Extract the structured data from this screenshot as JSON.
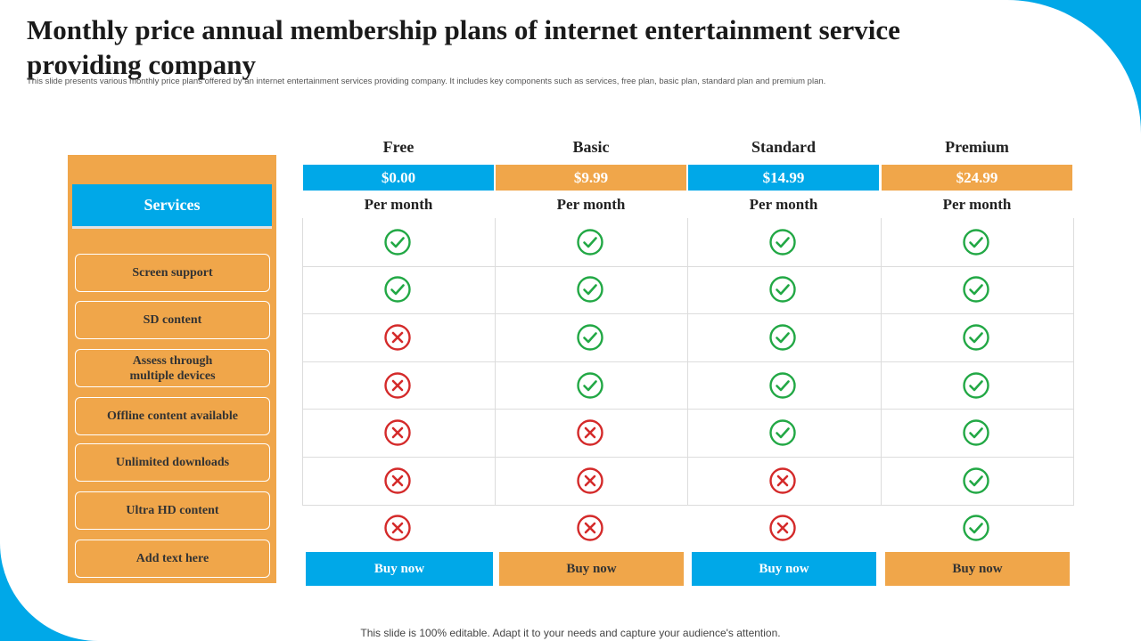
{
  "title": "Monthly price annual membership plans of internet entertainment service providing company",
  "subtitle": "This slide presents various monthly price plans offered by an internet entertainment services providing company. It includes key components such as services, free plan, basic plan, standard plan and premium plan.",
  "footer": "This slide is 100% editable. Adapt it to your needs and capture your audience's attention.",
  "colors": {
    "blue": "#00a8e8",
    "orange": "#f0a64a",
    "check": "#22a845",
    "cross": "#d42a2a"
  },
  "services": {
    "header": "Services",
    "items": [
      "Screen support",
      "SD content",
      "Assess through\nmultiple devices",
      "Offline content available",
      "Unlimited downloads",
      "Ultra HD content",
      "Add text here"
    ]
  },
  "plans": [
    {
      "name": "Free",
      "price": "$0.00",
      "period": "Per month",
      "button": "Buy now",
      "color": "blue",
      "features": [
        true,
        true,
        false,
        false,
        false,
        false,
        false
      ]
    },
    {
      "name": "Basic",
      "price": "$9.99",
      "period": "Per month",
      "button": "Buy now",
      "color": "orange",
      "features": [
        true,
        true,
        true,
        true,
        false,
        false,
        false
      ]
    },
    {
      "name": "Standard",
      "price": "$14.99",
      "period": "Per month",
      "button": "Buy now",
      "color": "blue",
      "features": [
        true,
        true,
        true,
        true,
        true,
        false,
        false
      ]
    },
    {
      "name": "Premium",
      "price": "$24.99",
      "period": "Per month",
      "button": "Buy now",
      "color": "orange",
      "features": [
        true,
        true,
        true,
        true,
        true,
        true,
        true
      ]
    }
  ],
  "icons": {
    "included": "check-circle-icon",
    "excluded": "x-circle-icon"
  }
}
